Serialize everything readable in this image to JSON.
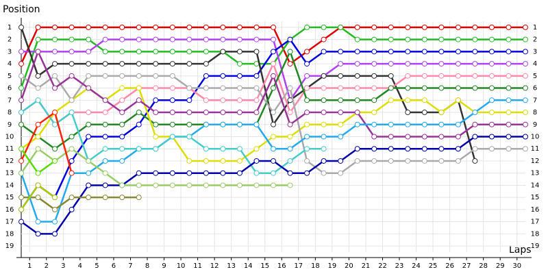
{
  "chart_data": {
    "type": "line",
    "y_axis_label": "Position",
    "x_axis_label": "Laps",
    "xlim": [
      0,
      30
    ],
    "ylim": [
      0.5,
      19.5
    ],
    "y_inverted": true,
    "grid": true,
    "xticks": [
      {
        "value": 0.5,
        "label": "1"
      },
      {
        "value": 1.5,
        "label": "2"
      },
      {
        "value": 2.5,
        "label": "3"
      },
      {
        "value": 3.5,
        "label": "4"
      },
      {
        "value": 4.5,
        "label": "5"
      },
      {
        "value": 5.5,
        "label": "6"
      },
      {
        "value": 6.5,
        "label": "7"
      },
      {
        "value": 7.5,
        "label": "8"
      },
      {
        "value": 8.5,
        "label": "9"
      },
      {
        "value": 9.5,
        "label": "10"
      },
      {
        "value": 10.5,
        "label": "11"
      },
      {
        "value": 11.5,
        "label": "12"
      },
      {
        "value": 12.5,
        "label": "13"
      },
      {
        "value": 13.5,
        "label": "14"
      },
      {
        "value": 14.5,
        "label": "15"
      },
      {
        "value": 15.5,
        "label": "16"
      },
      {
        "value": 16.5,
        "label": "17"
      },
      {
        "value": 17.5,
        "label": "18"
      },
      {
        "value": 18.5,
        "label": "19"
      },
      {
        "value": 19.5,
        "label": "20"
      },
      {
        "value": 20.5,
        "label": "21"
      },
      {
        "value": 21.5,
        "label": "22"
      },
      {
        "value": 22.5,
        "label": "23"
      },
      {
        "value": 23.5,
        "label": "24"
      },
      {
        "value": 24.5,
        "label": "25"
      },
      {
        "value": 25.5,
        "label": "26"
      },
      {
        "value": 26.5,
        "label": "27"
      },
      {
        "value": 27.5,
        "label": "28"
      },
      {
        "value": 28.5,
        "label": "29"
      },
      {
        "value": 29.5,
        "label": "30"
      }
    ],
    "yticks": [
      1,
      2,
      3,
      4,
      5,
      6,
      7,
      8,
      9,
      10,
      11,
      12,
      13,
      14,
      15,
      16,
      17,
      18,
      19
    ],
    "x": [
      0,
      1,
      2,
      3,
      4,
      5,
      6,
      7,
      8,
      9,
      10,
      11,
      12,
      13,
      14,
      15,
      16,
      17,
      18,
      19,
      20,
      21,
      22,
      23,
      24,
      25,
      26,
      27,
      28,
      29,
      30
    ],
    "series": [
      {
        "color": "#e00000",
        "values": [
          4,
          1,
          1,
          1,
          1,
          1,
          1,
          1,
          1,
          1,
          1,
          1,
          1,
          1,
          1,
          1,
          4,
          3,
          2,
          1,
          1,
          1,
          1,
          1,
          1,
          1,
          1,
          1,
          1,
          1,
          1
        ]
      },
      {
        "color": "#22bb22",
        "values": [
          6,
          2,
          2,
          2,
          2,
          3,
          3,
          3,
          3,
          3,
          3,
          3,
          3,
          4,
          4,
          4,
          2,
          1,
          1,
          1,
          2,
          2,
          2,
          2,
          2,
          2,
          2,
          2,
          2,
          2,
          2
        ]
      },
      {
        "color": "#b040f0",
        "values": [
          3,
          3,
          3,
          3,
          3,
          2,
          2,
          2,
          2,
          2,
          2,
          2,
          2,
          2,
          2,
          2,
          7,
          5,
          5,
          4,
          4,
          4,
          4,
          4,
          4,
          4,
          4,
          4,
          4,
          4,
          4
        ]
      },
      {
        "color": "#0000e0",
        "values": [
          16,
          14,
          15,
          12,
          10,
          10,
          10,
          9,
          7,
          7,
          7,
          5,
          5,
          5,
          5,
          3,
          2,
          4,
          3,
          3,
          3,
          3,
          3,
          3,
          3,
          3,
          3,
          3,
          3,
          3,
          3
        ]
      },
      {
        "color": "#333333",
        "values": [
          1,
          5,
          4,
          4,
          4,
          4,
          4,
          4,
          4,
          4,
          4,
          4,
          3,
          3,
          3,
          9,
          7,
          6,
          5,
          5,
          5,
          5,
          5,
          8,
          8,
          8,
          7,
          12,
          null,
          null,
          null
        ]
      },
      {
        "color": "#ff88aa",
        "values": [
          8,
          7,
          9,
          8,
          8,
          8,
          7,
          6,
          6,
          6,
          6,
          7,
          7,
          7,
          7,
          4,
          8,
          6,
          6,
          6,
          6,
          6,
          6,
          5,
          5,
          5,
          5,
          5,
          5,
          5,
          5
        ]
      },
      {
        "color": "#228822",
        "values": [
          9,
          10,
          11,
          10,
          9,
          9,
          9,
          8,
          9,
          9,
          9,
          9,
          9,
          9,
          9,
          6,
          3,
          7,
          7,
          7,
          7,
          7,
          6,
          6,
          6,
          6,
          6,
          6,
          6,
          6,
          6
        ]
      },
      {
        "color": "#dddd00",
        "values": [
          11,
          10,
          8,
          7,
          6,
          7,
          6,
          6,
          10,
          10,
          12,
          12,
          12,
          12,
          11,
          10,
          10,
          9,
          9,
          9,
          8,
          8,
          7,
          7,
          7,
          8,
          7,
          8,
          8,
          8,
          8
        ]
      },
      {
        "color": "#aaaaaa",
        "values": [
          5,
          6,
          5,
          7,
          5,
          5,
          5,
          5,
          5,
          5,
          6,
          6,
          6,
          6,
          6,
          8,
          6,
          12,
          13,
          13,
          12,
          12,
          12,
          12,
          12,
          12,
          12,
          11,
          11,
          11,
          11
        ]
      },
      {
        "color": "#993399",
        "values": [
          7,
          3,
          6,
          5,
          6,
          7,
          8,
          7,
          8,
          8,
          8,
          8,
          8,
          8,
          8,
          5,
          9,
          8,
          8,
          8,
          8,
          10,
          10,
          10,
          10,
          10,
          10,
          9,
          9,
          9,
          9
        ]
      },
      {
        "color": "#22aaee",
        "values": [
          13,
          17,
          17,
          13,
          13,
          12,
          12,
          11,
          11,
          10,
          10,
          9,
          9,
          9,
          9,
          11,
          11,
          10,
          10,
          10,
          9,
          9,
          9,
          9,
          9,
          9,
          9,
          8,
          7,
          7,
          7
        ]
      },
      {
        "color": "#44cccc",
        "values": [
          8,
          7,
          9,
          8,
          12,
          11,
          11,
          11,
          11,
          10,
          10,
          11,
          11,
          11,
          13,
          13,
          12,
          11,
          11,
          null,
          null,
          null,
          null,
          null,
          null,
          null,
          null,
          null,
          null,
          null,
          null
        ]
      },
      {
        "color": "#0000aa",
        "values": [
          17,
          18,
          18,
          16,
          14,
          14,
          14,
          13,
          13,
          13,
          13,
          13,
          13,
          13,
          12,
          12,
          13,
          13,
          12,
          12,
          11,
          11,
          11,
          11,
          11,
          11,
          11,
          10,
          10,
          10,
          10
        ]
      },
      {
        "color": "#99cc66",
        "values": [
          13,
          11,
          12,
          11,
          12,
          13,
          14,
          14,
          14,
          14,
          14,
          14,
          14,
          14,
          14,
          14,
          14,
          null,
          null,
          null,
          null,
          null,
          null,
          null,
          null,
          null,
          null,
          null,
          null,
          null,
          null
        ]
      },
      {
        "color": "#888833",
        "values": [
          15,
          15,
          16,
          15,
          15,
          15,
          15,
          15,
          null,
          null,
          null,
          null,
          null,
          null,
          null,
          null,
          null,
          null,
          null,
          null,
          null,
          null,
          null,
          null,
          null,
          null,
          null,
          null,
          null,
          null,
          null
        ]
      },
      {
        "color": "#ff2200",
        "values": [
          12,
          9,
          8,
          13,
          null,
          null,
          null,
          null,
          null,
          null,
          null,
          null,
          null,
          null,
          null,
          null,
          null,
          null,
          null,
          null,
          null,
          null,
          null,
          null,
          null,
          null,
          null,
          null,
          null,
          null,
          null
        ]
      },
      {
        "color": "#55dd00",
        "values": [
          11,
          13,
          12,
          null,
          null,
          null,
          null,
          null,
          null,
          null,
          null,
          null,
          null,
          null,
          null,
          null,
          null,
          null,
          null,
          null,
          null,
          null,
          null,
          null,
          null,
          null,
          null,
          null,
          null,
          null,
          null
        ]
      },
      {
        "color": "#aacc00",
        "values": [
          16,
          14,
          15,
          null,
          null,
          null,
          null,
          null,
          null,
          null,
          null,
          null,
          null,
          null,
          null,
          null,
          null,
          null,
          null,
          null,
          null,
          null,
          null,
          null,
          null,
          null,
          null,
          null,
          null,
          null,
          null
        ]
      }
    ]
  }
}
